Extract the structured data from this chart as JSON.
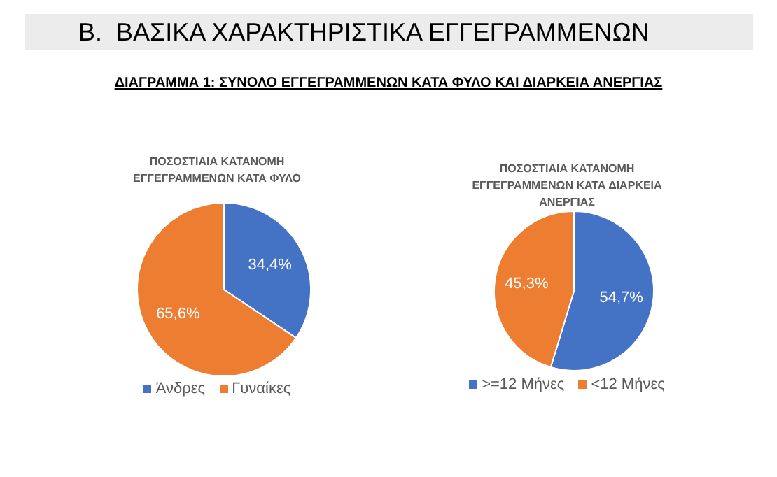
{
  "chart_data": [
    {
      "type": "pie",
      "title": "ΠΟΣΟΣΤΙΑΙΑ ΚΑΤΑΝΟΜΗ ΕΓΓΕΓΡΑΜΜΕΝΩΝ ΚΑΤΑ ΦΥΛΟ",
      "annotations": [
        "Β.  ΒΑΣΙΚΑ ΧΑΡΑΚΤΗΡΙΣΤΙΚΑ ΕΓΓΕΓΡΑΜΜΕΝΩΝ",
        "ΔΙΑΓΡΑΜΜΑ 1: ΣΥΝΟΛΟ ΕΓΓΕΓΡΑΜΜΕΝΩΝ ΚΑΤΑ ΦΥΛΟ ΚΑΙ ΔΙΑΡΚΕΙΑ ΑΝΕΡΓΙΑΣ"
      ],
      "categories": [
        "Άνδρες",
        "Γυναίκες"
      ],
      "values": [
        34.4,
        65.6
      ],
      "colors": [
        "#4472c4",
        "#ed7d31"
      ],
      "value_labels": [
        "34,4%",
        "65,6%"
      ],
      "legend": "bottom"
    },
    {
      "type": "pie",
      "title": "ΠΟΣΟΣΤΙΑΙΑ ΚΑΤΑΝΟΜΗ ΕΓΓΕΓΡΑΜΜΕΝΩΝ ΚΑΤΑ ΔΙΑΡΚΕΙΑ ΑΝΕΡΓΙΑΣ",
      "categories": [
        ">=12 Μήνες",
        "<12 Μήνες"
      ],
      "values": [
        54.7,
        45.3
      ],
      "colors": [
        "#4472c4",
        "#ed7d31"
      ],
      "value_labels": [
        "54,7%",
        "45,3%"
      ],
      "legend": "bottom"
    }
  ]
}
